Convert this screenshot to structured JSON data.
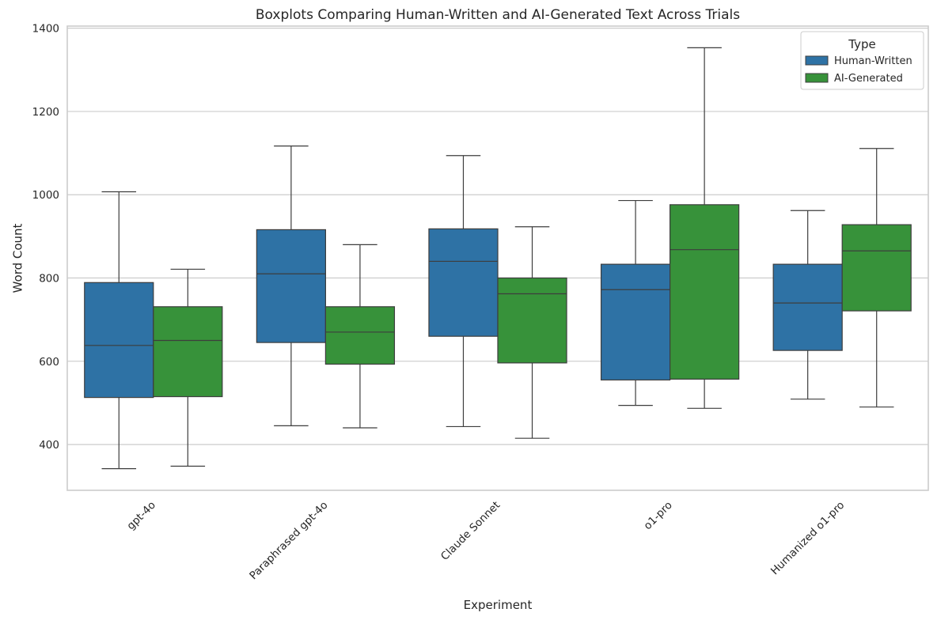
{
  "chart_data": {
    "type": "box",
    "title": "Boxplots Comparing Human-Written and AI-Generated Text Across Trials",
    "xlabel": "Experiment",
    "ylabel": "Word Count",
    "ylim": [
      290,
      1405
    ],
    "yticks": [
      400,
      600,
      800,
      1000,
      1200,
      1400
    ],
    "grid": true,
    "categories": [
      "gpt-4o",
      "Paraphrased gpt-4o",
      "Claude Sonnet",
      "o1-pro",
      "Humanized o1-pro"
    ],
    "legend": {
      "title": "Type",
      "position": "top-right"
    },
    "series": [
      {
        "name": "Human-Written",
        "color": "#2e72a5",
        "boxes": [
          {
            "min": 342,
            "q1": 513,
            "median": 638,
            "q3": 789,
            "max": 1007
          },
          {
            "min": 445,
            "q1": 645,
            "median": 810,
            "q3": 916,
            "max": 1117
          },
          {
            "min": 443,
            "q1": 660,
            "median": 840,
            "q3": 918,
            "max": 1094
          },
          {
            "min": 494,
            "q1": 555,
            "median": 772,
            "q3": 833,
            "max": 986
          },
          {
            "min": 509,
            "q1": 626,
            "median": 740,
            "q3": 833,
            "max": 962
          }
        ]
      },
      {
        "name": "AI-Generated",
        "color": "#37923a",
        "boxes": [
          {
            "min": 348,
            "q1": 515,
            "median": 650,
            "q3": 731,
            "max": 821
          },
          {
            "min": 440,
            "q1": 593,
            "median": 670,
            "q3": 731,
            "max": 880
          },
          {
            "min": 415,
            "q1": 596,
            "median": 762,
            "q3": 800,
            "max": 923
          },
          {
            "min": 487,
            "q1": 557,
            "median": 868,
            "q3": 976,
            "max": 1353
          },
          {
            "min": 490,
            "q1": 721,
            "median": 865,
            "q3": 928,
            "max": 1111
          }
        ]
      }
    ]
  }
}
